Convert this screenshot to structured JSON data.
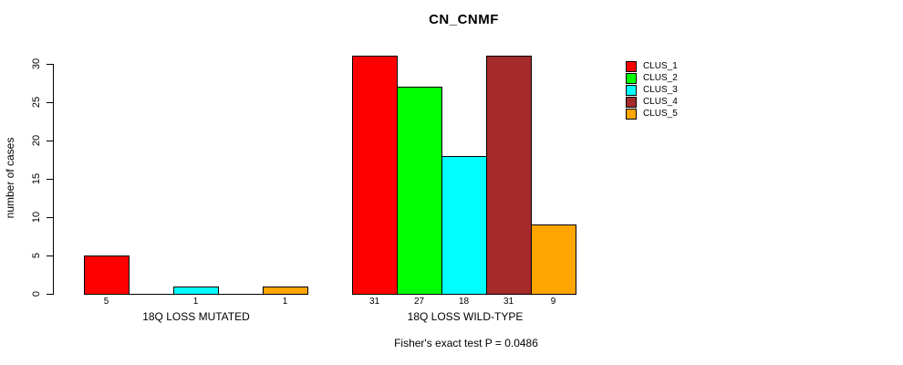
{
  "chart_data": {
    "type": "bar",
    "title": "CN_CNMF",
    "ylabel": "number of cases",
    "xlabel": "",
    "yticks": [
      0,
      5,
      10,
      15,
      20,
      25,
      30
    ],
    "ylim": [
      0,
      31
    ],
    "grid": false,
    "legend_position": "top-right",
    "groups": [
      "18Q LOSS MUTATED",
      "18Q LOSS WILD-TYPE"
    ],
    "series": [
      {
        "name": "CLUS_1",
        "color": "#FF0000",
        "values": [
          5,
          31
        ]
      },
      {
        "name": "CLUS_2",
        "color": "#00FF00",
        "values": [
          0,
          27
        ]
      },
      {
        "name": "CLUS_3",
        "color": "#00FFFF",
        "values": [
          1,
          18
        ]
      },
      {
        "name": "CLUS_4",
        "color": "#A52A2A",
        "values": [
          0,
          31
        ]
      },
      {
        "name": "CLUS_5",
        "color": "#FFA500",
        "values": [
          1,
          9
        ]
      }
    ],
    "bar_value_labels_shown_for_nonzero_only": true,
    "annotation": "Fisher's exact test P = 0.0486",
    "axis_color": "#000000",
    "bar_border_color": "#000000",
    "background_color": "#FFFFFF"
  }
}
